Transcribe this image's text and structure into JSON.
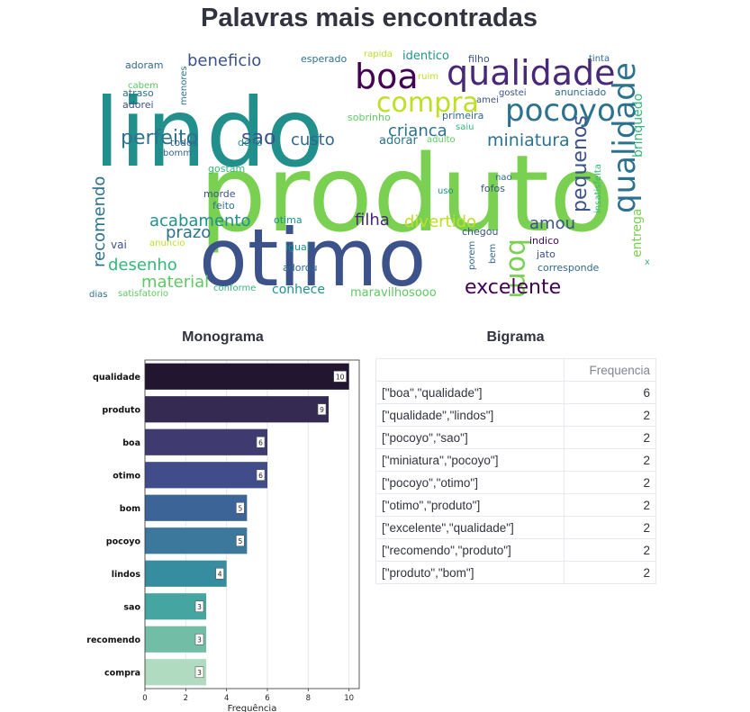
{
  "page": {
    "title": "Palavras mais encontradas"
  },
  "wordcloud": {
    "words": [
      {
        "text": "produto",
        "color": "#7ad151"
      },
      {
        "text": "lindo",
        "color": "#21908d"
      },
      {
        "text": "otimo",
        "color": "#3b528b"
      },
      {
        "text": "boa",
        "color": "#440154"
      },
      {
        "text": "qualidade",
        "color": "#482878"
      },
      {
        "text": "qualidade",
        "color": "#2c728e"
      },
      {
        "text": "pocoyo",
        "color": "#2c728e"
      },
      {
        "text": "compra",
        "color": "#bddf26"
      },
      {
        "text": "perfeito",
        "color": "#2c728e"
      },
      {
        "text": "sao",
        "color": "#3b528b"
      },
      {
        "text": "beneficio",
        "color": "#3b528b"
      },
      {
        "text": "crianca",
        "color": "#2c728e"
      },
      {
        "text": "miniatura",
        "color": "#2c728e"
      },
      {
        "text": "custo",
        "color": "#31688e"
      },
      {
        "text": "recomendo",
        "color": "#2c728e"
      },
      {
        "text": "pequenos",
        "color": "#3b528b"
      },
      {
        "text": "bom",
        "color": "#7ad151"
      },
      {
        "text": "excelente",
        "color": "#440154"
      },
      {
        "text": "filha",
        "color": "#482878"
      },
      {
        "text": "divertido",
        "color": "#bddf26"
      },
      {
        "text": "acabamento",
        "color": "#21908d"
      },
      {
        "text": "prazo",
        "color": "#2c728e"
      },
      {
        "text": "desenho",
        "color": "#35b779"
      },
      {
        "text": "material",
        "color": "#5ec962"
      },
      {
        "text": "amou",
        "color": "#3b528b"
      },
      {
        "text": "brinquedo",
        "color": "#35b779"
      },
      {
        "text": "entrega",
        "color": "#7ad151"
      },
      {
        "text": "conhece",
        "color": "#21908d"
      },
      {
        "text": "maravilhosooo",
        "color": "#5ec962"
      },
      {
        "text": "adorar",
        "color": "#2c728e"
      },
      {
        "text": "identico",
        "color": "#21908d"
      },
      {
        "text": "esperado",
        "color": "#2c728e"
      },
      {
        "text": "adoram",
        "color": "#31688e"
      },
      {
        "text": "menores",
        "color": "#2c728e"
      },
      {
        "text": "cabem",
        "color": "#5ec962"
      },
      {
        "text": "atraso",
        "color": "#2c728e"
      },
      {
        "text": "adorei",
        "color": "#3b528b"
      },
      {
        "text": "todos",
        "color": "#31688e"
      },
      {
        "text": "dedo",
        "color": "#21908d"
      },
      {
        "text": "bomm",
        "color": "#31688e"
      },
      {
        "text": "gostam",
        "color": "#35b779"
      },
      {
        "text": "morde",
        "color": "#3b528b"
      },
      {
        "text": "feito",
        "color": "#2c728e"
      },
      {
        "text": "otima",
        "color": "#21908d"
      },
      {
        "text": "vai",
        "color": "#3b528b"
      },
      {
        "text": "anuncio",
        "color": "#bddf26"
      },
      {
        "text": "igual",
        "color": "#21908d"
      },
      {
        "text": "adorou",
        "color": "#31688e"
      },
      {
        "text": "conforme",
        "color": "#35b779"
      },
      {
        "text": "dias",
        "color": "#2c728e"
      },
      {
        "text": "satisfatorio",
        "color": "#5ec962"
      },
      {
        "text": "rapida",
        "color": "#bddf26"
      },
      {
        "text": "filho",
        "color": "#3b528b"
      },
      {
        "text": "ruim",
        "color": "#bddf26"
      },
      {
        "text": "tinta",
        "color": "#31688e"
      },
      {
        "text": "amei",
        "color": "#3b528b"
      },
      {
        "text": "gostei",
        "color": "#3b528b"
      },
      {
        "text": "anunciado",
        "color": "#31688e"
      },
      {
        "text": "sobrinho",
        "color": "#5ec962"
      },
      {
        "text": "primeira",
        "color": "#31688e"
      },
      {
        "text": "saiu",
        "color": "#35b779"
      },
      {
        "text": "adulto",
        "color": "#5ec962"
      },
      {
        "text": "nao",
        "color": "#31688e"
      },
      {
        "text": "fofos",
        "color": "#3b528b"
      },
      {
        "text": "uso",
        "color": "#21908d"
      },
      {
        "text": "insatisfeita",
        "color": "#35b779"
      },
      {
        "text": "chegou",
        "color": "#3b528b"
      },
      {
        "text": "porem",
        "color": "#31688e"
      },
      {
        "text": "bem",
        "color": "#31688e"
      },
      {
        "text": "indico",
        "color": "#440154"
      },
      {
        "text": "jato",
        "color": "#3b528b"
      },
      {
        "text": "corresponde",
        "color": "#31688e"
      },
      {
        "text": "x",
        "color": "#35b779"
      }
    ]
  },
  "monograma": {
    "title": "Monograma"
  },
  "bigrama": {
    "title": "Bigrama",
    "header": "Frequencia",
    "rows": [
      {
        "key": "[\"boa\",\"qualidade\"]",
        "value": "6"
      },
      {
        "key": "[\"qualidade\",\"lindos\"]",
        "value": "2"
      },
      {
        "key": "[\"pocoyo\",\"sao\"]",
        "value": "2"
      },
      {
        "key": "[\"miniatura\",\"pocoyo\"]",
        "value": "2"
      },
      {
        "key": "[\"pocoyo\",\"otimo\"]",
        "value": "2"
      },
      {
        "key": "[\"otimo\",\"produto\"]",
        "value": "2"
      },
      {
        "key": "[\"excelente\",\"qualidade\"]",
        "value": "2"
      },
      {
        "key": "[\"recomendo\",\"produto\"]",
        "value": "2"
      },
      {
        "key": "[\"produto\",\"bom\"]",
        "value": "2"
      }
    ]
  },
  "chart_data": {
    "type": "bar",
    "orientation": "horizontal",
    "categories": [
      "qualidade",
      "produto",
      "boa",
      "otimo",
      "bom",
      "pocoyo",
      "lindos",
      "sao",
      "recomendo",
      "compra"
    ],
    "values": [
      10,
      9,
      6,
      6,
      5,
      5,
      4,
      3,
      3,
      3
    ],
    "data_labels": [
      "10",
      "9",
      "6",
      "6",
      "5",
      "5",
      "4",
      "3",
      "3",
      "3"
    ],
    "colors": [
      "#221530",
      "#352a52",
      "#3f3a70",
      "#414d8a",
      "#3d6497",
      "#3b789c",
      "#368d9f",
      "#45a5a0",
      "#72bda6",
      "#b1dbc0"
    ],
    "xlabel": "Frequência",
    "xlim": [
      0,
      10.5
    ],
    "xticks": [
      0,
      2,
      4,
      6,
      8,
      10
    ],
    "grid": true
  }
}
